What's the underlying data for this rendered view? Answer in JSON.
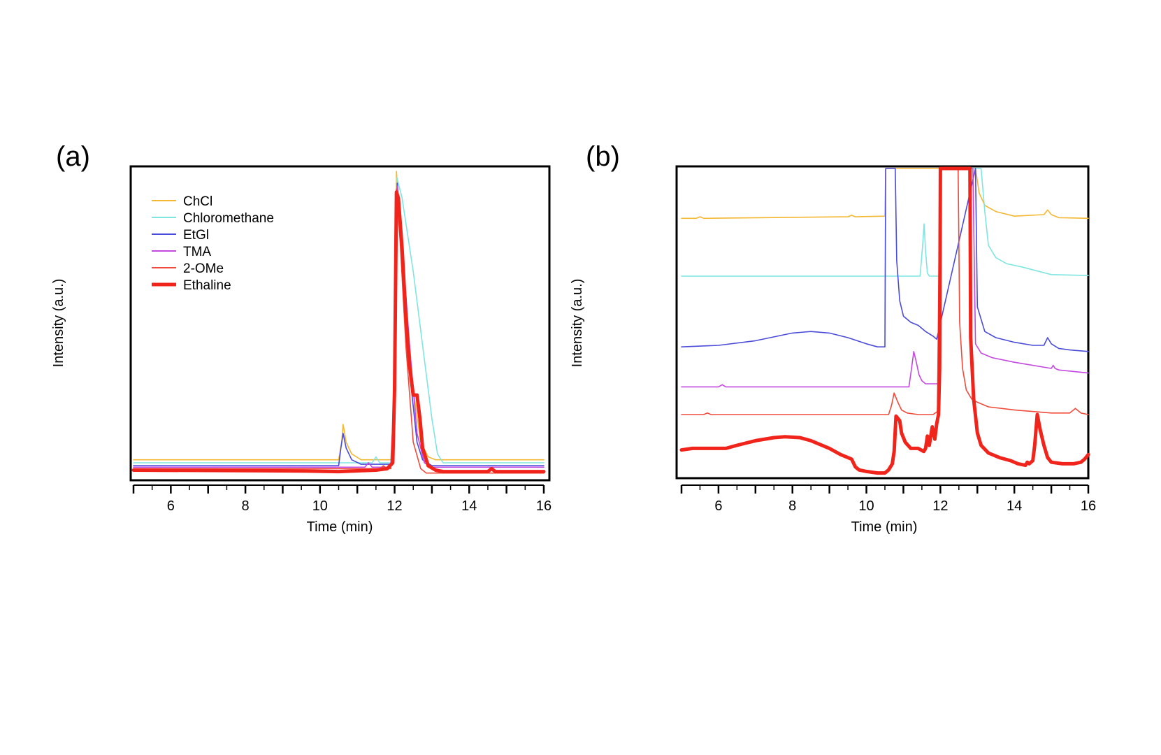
{
  "chart_data": [
    {
      "panel": "(a)",
      "type": "line",
      "xlabel": "Time (min)",
      "ylabel": "Intensity (a.u.)",
      "xlim": [
        5,
        16
      ],
      "ylim": [
        0,
        1.05
      ],
      "xticks": [
        6,
        8,
        10,
        12,
        14,
        16
      ],
      "legend": "top-left",
      "series": [
        {
          "name": "ChCl",
          "color": "#f5b731",
          "width": 1.6,
          "x": [
            5,
            10.5,
            10.58,
            10.62,
            10.7,
            10.85,
            11.1,
            11.9,
            12.0,
            12.05,
            12.12,
            12.3,
            12.5,
            12.7,
            12.9,
            13.1,
            14,
            16
          ],
          "y": [
            0.06,
            0.06,
            0.12,
            0.18,
            0.12,
            0.08,
            0.06,
            0.06,
            0.3,
            1.04,
            0.9,
            0.6,
            0.3,
            0.12,
            0.07,
            0.06,
            0.06,
            0.06
          ]
        },
        {
          "name": "Chloromethane",
          "color": "#7fe5e0",
          "width": 1.6,
          "x": [
            5,
            11.4,
            11.5,
            11.6,
            11.9,
            12.0,
            12.06,
            12.2,
            12.5,
            12.8,
            13.0,
            13.15,
            13.3,
            16
          ],
          "y": [
            0.05,
            0.05,
            0.07,
            0.05,
            0.05,
            0.3,
            1.02,
            0.95,
            0.7,
            0.4,
            0.2,
            0.08,
            0.05,
            0.05
          ]
        },
        {
          "name": "EtGl",
          "color": "#4b4bdb",
          "width": 1.6,
          "x": [
            5,
            10.5,
            10.56,
            10.62,
            10.7,
            10.85,
            11.1,
            11.9,
            12.0,
            12.07,
            12.15,
            12.3,
            12.45,
            12.6,
            12.75,
            13.0,
            16
          ],
          "y": [
            0.04,
            0.04,
            0.1,
            0.15,
            0.1,
            0.06,
            0.045,
            0.045,
            0.3,
            1.0,
            0.85,
            0.55,
            0.3,
            0.12,
            0.06,
            0.04,
            0.04
          ]
        },
        {
          "name": "TMA",
          "color": "#c348e0",
          "width": 1.6,
          "x": [
            5,
            11.2,
            11.3,
            11.4,
            11.9,
            12.0,
            12.08,
            12.2,
            12.4,
            12.6,
            12.8,
            13.0,
            16
          ],
          "y": [
            0.035,
            0.035,
            0.05,
            0.035,
            0.035,
            0.3,
            0.99,
            0.8,
            0.45,
            0.15,
            0.05,
            0.035,
            0.035
          ]
        },
        {
          "name": "2-OMe",
          "color": "#f04a3a",
          "width": 1.6,
          "x": [
            5,
            11.6,
            11.7,
            11.8,
            11.9,
            12.0,
            12.05,
            12.15,
            12.3,
            12.5,
            12.7,
            12.85,
            13.0,
            16
          ],
          "y": [
            0.03,
            0.03,
            0.04,
            0.03,
            0.03,
            0.3,
            0.98,
            0.8,
            0.45,
            0.12,
            0.03,
            0.015,
            0.015,
            0.015
          ]
        },
        {
          "name": "Ethaline",
          "color": "#f0241b",
          "width": 5,
          "x": [
            5,
            9.6,
            10.5,
            11.5,
            11.8,
            11.95,
            12.0,
            12.05,
            12.1,
            12.2,
            12.3,
            12.4,
            12.5,
            12.6,
            12.68,
            12.75,
            12.9,
            13.1,
            13.3,
            14.5,
            14.6,
            14.7,
            14.9,
            16
          ],
          "y": [
            0.025,
            0.022,
            0.02,
            0.025,
            0.03,
            0.05,
            0.3,
            0.97,
            0.95,
            0.78,
            0.55,
            0.38,
            0.28,
            0.28,
            0.2,
            0.1,
            0.04,
            0.025,
            0.02,
            0.02,
            0.03,
            0.02,
            0.02,
            0.02
          ]
        }
      ]
    },
    {
      "panel": "(b)",
      "type": "line",
      "xlabel": "Time (min)",
      "ylabel": "Intensity (a.u.)",
      "xlim": [
        5,
        16
      ],
      "ylim": [
        0,
        1
      ],
      "xticks": [
        6,
        8,
        10,
        12,
        14,
        16
      ],
      "legend": "none",
      "series": [
        {
          "name": "ChCl",
          "color": "#f5b731",
          "width": 1.6,
          "x": [
            5,
            5.4,
            5.5,
            5.6,
            9.5,
            9.6,
            9.7,
            10.5,
            10.52,
            12.95,
            13.05,
            13.2,
            13.5,
            14.0,
            14.8,
            14.9,
            15.0,
            15.2,
            16
          ],
          "y": [
            0.838,
            0.838,
            0.843,
            0.838,
            0.843,
            0.848,
            0.843,
            0.845,
            1.1,
            1.1,
            0.92,
            0.88,
            0.86,
            0.845,
            0.85,
            0.865,
            0.85,
            0.84,
            0.838
          ]
        },
        {
          "name": "Chloromethane",
          "color": "#7fe5e0",
          "width": 1.6,
          "x": [
            5,
            11.45,
            11.52,
            11.56,
            11.6,
            11.65,
            11.7,
            12.0,
            12.02,
            13.1,
            13.2,
            13.3,
            13.5,
            13.8,
            14.2,
            15,
            16
          ],
          "y": [
            0.65,
            0.65,
            0.75,
            0.82,
            0.73,
            0.66,
            0.65,
            0.65,
            1.1,
            1.1,
            0.86,
            0.75,
            0.71,
            0.69,
            0.68,
            0.655,
            0.652
          ]
        },
        {
          "name": "EtGl",
          "color": "#4b4bdb",
          "width": 1.6,
          "x": [
            5,
            6,
            7,
            8,
            8.5,
            9,
            9.5,
            10.0,
            10.3,
            10.5,
            10.52,
            10.78,
            10.82,
            10.9,
            11.0,
            11.2,
            11.4,
            11.5,
            11.6,
            11.8,
            11.9,
            12.95,
            13.0,
            13.2,
            13.5,
            14.0,
            14.5,
            14.8,
            14.9,
            15.0,
            15.2,
            15.5,
            16
          ],
          "y": [
            0.42,
            0.425,
            0.44,
            0.465,
            0.47,
            0.465,
            0.45,
            0.43,
            0.42,
            0.42,
            1.1,
            1.1,
            0.7,
            0.57,
            0.52,
            0.5,
            0.49,
            0.48,
            0.47,
            0.455,
            0.445,
            1.1,
            0.55,
            0.47,
            0.45,
            0.435,
            0.425,
            0.425,
            0.45,
            0.43,
            0.415,
            0.41,
            0.405
          ]
        },
        {
          "name": "TMA",
          "color": "#c348e0",
          "width": 1.6,
          "x": [
            5,
            6.0,
            6.1,
            6.2,
            11.15,
            11.22,
            11.28,
            11.35,
            11.42,
            11.5,
            11.6,
            12.0,
            12.02,
            12.88,
            12.95,
            13.1,
            13.4,
            14.0,
            15.0,
            15.05,
            15.1,
            15.2,
            16
          ],
          "y": [
            0.29,
            0.29,
            0.297,
            0.29,
            0.29,
            0.35,
            0.405,
            0.37,
            0.33,
            0.31,
            0.3,
            0.3,
            1.1,
            1.1,
            0.43,
            0.4,
            0.385,
            0.37,
            0.35,
            0.36,
            0.35,
            0.345,
            0.335
          ]
        },
        {
          "name": "2-OMe",
          "color": "#f04a3a",
          "width": 1.6,
          "x": [
            5,
            5.6,
            5.7,
            5.8,
            10.6,
            10.68,
            10.75,
            10.85,
            10.95,
            11.1,
            11.4,
            11.8,
            11.92,
            11.97,
            12.0,
            12.48,
            12.52,
            12.6,
            12.7,
            12.85,
            13.0,
            13.3,
            14.0,
            15.0,
            15.5,
            15.65,
            15.8,
            16
          ],
          "y": [
            0.2,
            0.2,
            0.205,
            0.2,
            0.2,
            0.23,
            0.27,
            0.24,
            0.215,
            0.205,
            0.2,
            0.2,
            0.21,
            0.8,
            1.1,
            1.1,
            0.5,
            0.35,
            0.28,
            0.25,
            0.24,
            0.225,
            0.215,
            0.205,
            0.205,
            0.22,
            0.205,
            0.2
          ]
        },
        {
          "name": "Ethaline",
          "color": "#f0241b",
          "width": 5,
          "x": [
            5,
            5.3,
            5.6,
            6.2,
            6.5,
            7.0,
            7.5,
            7.8,
            8.2,
            8.5,
            9.0,
            9.3,
            9.5,
            9.6,
            9.7,
            9.8,
            10.0,
            10.3,
            10.5,
            10.6,
            10.7,
            10.75,
            10.8,
            10.9,
            10.95,
            11.05,
            11.2,
            11.4,
            11.55,
            11.6,
            11.65,
            11.7,
            11.78,
            11.85,
            11.9,
            11.95,
            11.98,
            12.0,
            12.8,
            12.82,
            12.9,
            13.0,
            13.1,
            13.3,
            13.6,
            13.9,
            14.1,
            14.3,
            14.35,
            14.4,
            14.5,
            14.55,
            14.62,
            14.7,
            14.8,
            14.9,
            15.0,
            15.3,
            15.6,
            15.8,
            15.9,
            16
          ],
          "y": [
            0.085,
            0.09,
            0.09,
            0.09,
            0.1,
            0.115,
            0.125,
            0.128,
            0.125,
            0.115,
            0.09,
            0.07,
            0.06,
            0.055,
            0.03,
            0.02,
            0.015,
            0.01,
            0.01,
            0.02,
            0.04,
            0.08,
            0.195,
            0.18,
            0.14,
            0.11,
            0.09,
            0.09,
            0.08,
            0.09,
            0.13,
            0.1,
            0.16,
            0.12,
            0.17,
            0.2,
            0.35,
            1.1,
            1.1,
            0.45,
            0.25,
            0.14,
            0.1,
            0.075,
            0.06,
            0.05,
            0.04,
            0.035,
            0.045,
            0.04,
            0.05,
            0.1,
            0.2,
            0.15,
            0.1,
            0.06,
            0.045,
            0.04,
            0.04,
            0.045,
            0.055,
            0.07
          ]
        }
      ]
    }
  ]
}
